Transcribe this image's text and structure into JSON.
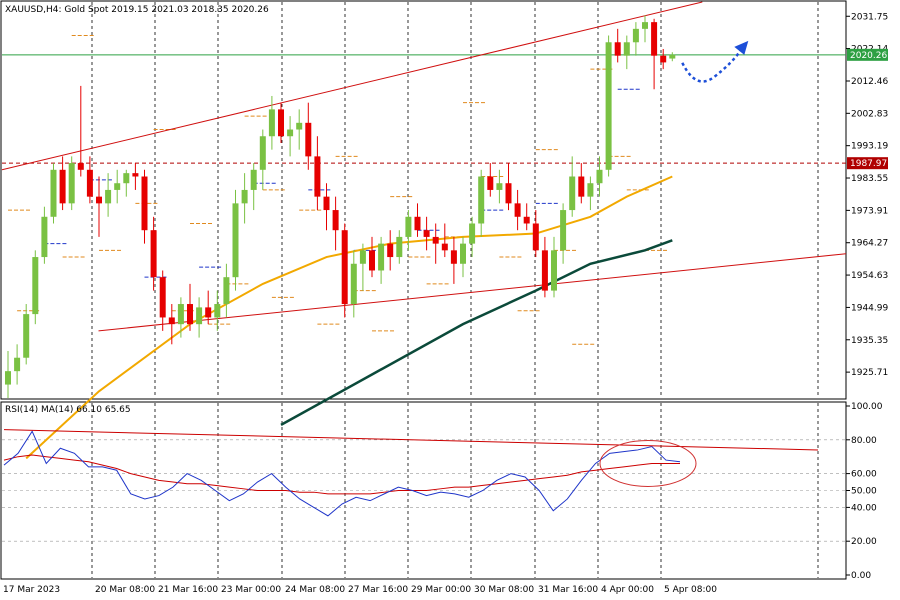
{
  "chart_data": [
    {
      "type": "candlestick",
      "symbol": "XAUUSD",
      "timeframe": "H4",
      "title": "XAUUSD,H4:  Gold Spot  2019.15 2021.03 2018.35 2020.26",
      "open": 2019.15,
      "high": 2021.03,
      "low": 2018.35,
      "close": 2020.26,
      "ylim": [
        1918,
        2036
      ],
      "y_ticks": [
        "2031.75",
        "2022.14",
        "2012.46",
        "2002.83",
        "1993.19",
        "1983.55",
        "1973.91",
        "1964.27",
        "1954.63",
        "1944.99",
        "1935.35",
        "1925.71"
      ],
      "x_ticks": [
        "17 Mar 2023",
        "20 Mar 08:00",
        "21 Mar 16:00",
        "23 Mar 00:00",
        "24 Mar 08:00",
        "27 Mar 16:00",
        "29 Mar 00:00",
        "30 Mar 08:00",
        "31 Mar 16:00",
        "4 Apr 00:00",
        "5 Apr 08:00"
      ],
      "current_price_label": "2020.26",
      "level_label": "1987.97",
      "candles": [
        [
          1922,
          1932,
          1918,
          1926
        ],
        [
          1926,
          1934,
          1922,
          1930
        ],
        [
          1930,
          1946,
          1928,
          1943
        ],
        [
          1943,
          1962,
          1940,
          1960
        ],
        [
          1960,
          1975,
          1958,
          1972
        ],
        [
          1972,
          1988,
          1970,
          1986
        ],
        [
          1986,
          1990,
          1974,
          1976
        ],
        [
          1976,
          1990,
          1974,
          1988
        ],
        [
          1988,
          2011,
          1984,
          1986
        ],
        [
          1986,
          1990,
          1976,
          1978
        ],
        [
          1978,
          1984,
          1966,
          1976
        ],
        [
          1976,
          1985,
          1972,
          1980
        ],
        [
          1980,
          1986,
          1976,
          1982
        ],
        [
          1982,
          1986,
          1978,
          1985
        ],
        [
          1985,
          1988,
          1980,
          1984
        ],
        [
          1984,
          1986,
          1964,
          1968
        ],
        [
          1968,
          1972,
          1950,
          1954
        ],
        [
          1954,
          1956,
          1938,
          1942
        ],
        [
          1942,
          1946,
          1934,
          1940
        ],
        [
          1940,
          1948,
          1936,
          1946
        ],
        [
          1946,
          1952,
          1938,
          1940
        ],
        [
          1940,
          1948,
          1936,
          1945
        ],
        [
          1945,
          1950,
          1940,
          1942
        ],
        [
          1942,
          1950,
          1938,
          1946
        ],
        [
          1946,
          1958,
          1942,
          1954
        ],
        [
          1954,
          1980,
          1950,
          1976
        ],
        [
          1976,
          1985,
          1970,
          1980
        ],
        [
          1980,
          1988,
          1974,
          1986
        ],
        [
          1986,
          1998,
          1980,
          1996
        ],
        [
          1996,
          2008,
          1992,
          2004
        ],
        [
          2004,
          2006,
          1994,
          1996
        ],
        [
          1996,
          2002,
          1990,
          1998
        ],
        [
          1998,
          2004,
          1992,
          2000
        ],
        [
          2000,
          2006,
          1986,
          1990
        ],
        [
          1990,
          1996,
          1974,
          1978
        ],
        [
          1978,
          1982,
          1968,
          1974
        ],
        [
          1974,
          1978,
          1962,
          1968
        ],
        [
          1968,
          1970,
          1942,
          1946
        ],
        [
          1946,
          1962,
          1942,
          1958
        ],
        [
          1958,
          1964,
          1950,
          1962
        ],
        [
          1962,
          1966,
          1954,
          1956
        ],
        [
          1956,
          1966,
          1952,
          1964
        ],
        [
          1964,
          1968,
          1956,
          1960
        ],
        [
          1960,
          1968,
          1958,
          1966
        ],
        [
          1966,
          1974,
          1962,
          1972
        ],
        [
          1972,
          1976,
          1966,
          1968
        ],
        [
          1968,
          1972,
          1962,
          1966
        ],
        [
          1966,
          1970,
          1958,
          1964
        ],
        [
          1964,
          1970,
          1960,
          1962
        ],
        [
          1962,
          1966,
          1952,
          1958
        ],
        [
          1958,
          1966,
          1954,
          1964
        ],
        [
          1964,
          1972,
          1960,
          1970
        ],
        [
          1970,
          1986,
          1966,
          1984
        ],
        [
          1984,
          1988,
          1978,
          1980
        ],
        [
          1980,
          1986,
          1976,
          1982
        ],
        [
          1982,
          1988,
          1974,
          1976
        ],
        [
          1976,
          1980,
          1968,
          1972
        ],
        [
          1972,
          1976,
          1968,
          1970
        ],
        [
          1970,
          1974,
          1960,
          1962
        ],
        [
          1962,
          1966,
          1948,
          1950
        ],
        [
          1950,
          1966,
          1948,
          1962
        ],
        [
          1962,
          1976,
          1958,
          1974
        ],
        [
          1974,
          1990,
          1972,
          1984
        ],
        [
          1984,
          1988,
          1976,
          1978
        ],
        [
          1978,
          1984,
          1974,
          1982
        ],
        [
          1982,
          1990,
          1978,
          1986
        ],
        [
          1986,
          2026,
          1984,
          2024
        ],
        [
          2024,
          2028,
          2018,
          2020
        ],
        [
          2020,
          2026,
          2016,
          2024
        ],
        [
          2024,
          2030,
          2020,
          2028
        ],
        [
          2028,
          2032,
          2024,
          2030
        ],
        [
          2030,
          2031,
          2010,
          2020
        ],
        [
          2020,
          2022,
          2016,
          2018
        ],
        [
          2019.15,
          2021.03,
          2018.35,
          2020.26
        ]
      ],
      "indicators": {
        "ma_yellow": [
          [
            2,
            1900
          ],
          [
            10,
            1920
          ],
          [
            20,
            1940
          ],
          [
            28,
            1952
          ],
          [
            35,
            1960
          ],
          [
            42,
            1964
          ],
          [
            50,
            1966
          ],
          [
            58,
            1967
          ],
          [
            64,
            1972
          ],
          [
            68,
            1978
          ],
          [
            73,
            1984
          ]
        ],
        "ma_dark": [
          [
            30,
            1910
          ],
          [
            40,
            1925
          ],
          [
            50,
            1940
          ],
          [
            58,
            1950
          ],
          [
            64,
            1958
          ],
          [
            70,
            1962
          ],
          [
            73,
            1965
          ]
        ],
        "channel_upper": [
          [
            0,
            1986
          ],
          [
            73,
            2036
          ]
        ],
        "channel_lower": [
          [
            5,
            1938
          ],
          [
            84,
            1961
          ]
        ]
      },
      "sub_chart": {
        "title": "RSI(14) MA(14) 66.10 65.65",
        "rsi": 66.1,
        "ma": 65.65,
        "ylim": [
          0,
          100
        ],
        "y_ticks": [
          "100.00",
          "80.00",
          "60.00",
          "50.00",
          "40.00",
          "20.00",
          "0.00"
        ],
        "rsi_values": [
          65,
          72,
          85,
          66,
          75,
          72,
          64,
          64,
          62,
          48,
          45,
          47,
          52,
          60,
          56,
          50,
          44,
          48,
          55,
          60,
          52,
          45,
          40,
          35,
          42,
          46,
          44,
          48,
          52,
          50,
          47,
          49,
          48,
          46,
          50,
          56,
          60,
          58,
          50,
          38,
          45,
          56,
          66,
          72,
          73,
          74,
          76,
          68,
          67
        ],
        "ma_values": [
          68,
          70,
          71,
          70,
          69,
          68,
          67,
          65,
          63,
          60,
          58,
          56,
          55,
          54,
          54,
          53,
          52,
          51,
          50,
          50,
          50,
          49,
          49,
          48,
          48,
          48,
          48,
          49,
          50,
          50,
          50,
          51,
          52,
          52,
          53,
          54,
          55,
          56,
          57,
          58,
          59,
          61,
          62,
          63,
          64,
          65,
          66,
          66,
          66
        ]
      },
      "colors": {
        "bull": "#7ac143",
        "bear": "#e60000",
        "ma_yellow": "#f2a900",
        "ma_dark": "#0b4a3a",
        "price_line": "#2ea043",
        "level_line": "#b00000",
        "rsi": "#1f35c9",
        "rsi_ma": "#cc0000",
        "forecast": "#1d4fd8"
      }
    }
  ]
}
